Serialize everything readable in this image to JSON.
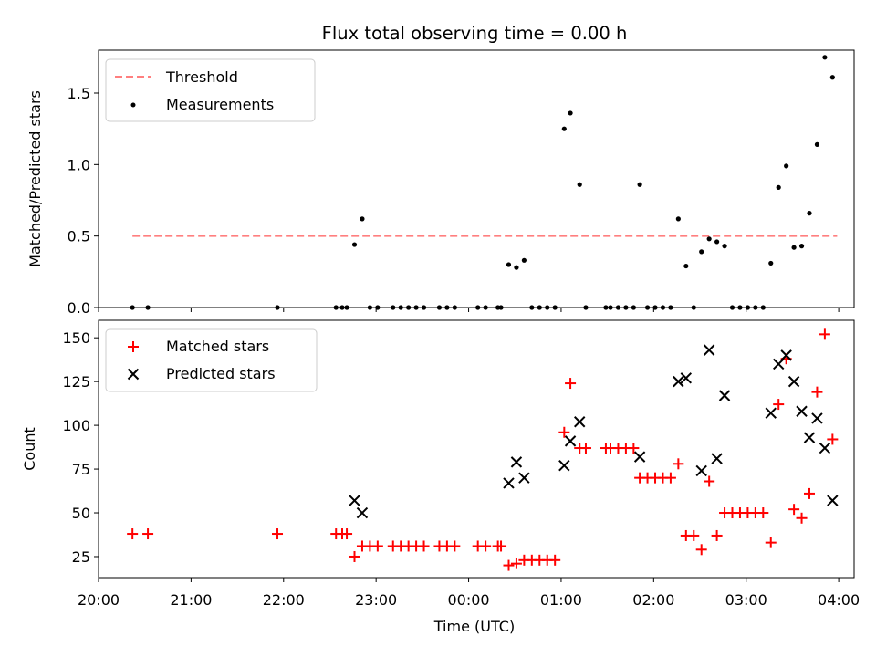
{
  "chart_data": [
    {
      "type": "line",
      "title": "Flux total observing time = 0.00 h",
      "xlabel": "",
      "ylabel": "Matched/Predicted stars",
      "xlim": [
        "20:00",
        "04:10"
      ],
      "ylim": [
        0,
        1.8
      ],
      "yticks": [
        0.0,
        0.5,
        1.0,
        1.5
      ],
      "yticklabels": [
        "0.0",
        "0.5",
        "1.0",
        "1.5"
      ],
      "legend_position": "top-left",
      "threshold": {
        "name": "Threshold",
        "value": 0.5,
        "x_range": [
          "20:22",
          "03:59"
        ],
        "color": "#ff7f7f"
      },
      "measurements": {
        "name": "Measurements",
        "color": "#000000",
        "points": [
          {
            "x": "20:22",
            "y": 0.0
          },
          {
            "x": "20:32",
            "y": 0.0
          },
          {
            "x": "21:56",
            "y": 0.0
          },
          {
            "x": "22:34",
            "y": 0.0
          },
          {
            "x": "22:38",
            "y": 0.0
          },
          {
            "x": "22:41",
            "y": 0.0
          },
          {
            "x": "22:46",
            "y": 0.44
          },
          {
            "x": "22:51",
            "y": 0.62
          },
          {
            "x": "22:56",
            "y": 0.0
          },
          {
            "x": "23:01",
            "y": 0.0
          },
          {
            "x": "23:11",
            "y": 0.0
          },
          {
            "x": "23:16",
            "y": 0.0
          },
          {
            "x": "23:21",
            "y": 0.0
          },
          {
            "x": "23:26",
            "y": 0.0
          },
          {
            "x": "23:31",
            "y": 0.0
          },
          {
            "x": "23:41",
            "y": 0.0
          },
          {
            "x": "23:46",
            "y": 0.0
          },
          {
            "x": "23:51",
            "y": 0.0
          },
          {
            "x": "00:06",
            "y": 0.0
          },
          {
            "x": "00:11",
            "y": 0.0
          },
          {
            "x": "00:19",
            "y": 0.0
          },
          {
            "x": "00:21",
            "y": 0.0
          },
          {
            "x": "00:26",
            "y": 0.3
          },
          {
            "x": "00:31",
            "y": 0.28
          },
          {
            "x": "00:36",
            "y": 0.33
          },
          {
            "x": "00:41",
            "y": 0.0
          },
          {
            "x": "00:46",
            "y": 0.0
          },
          {
            "x": "00:51",
            "y": 0.0
          },
          {
            "x": "00:56",
            "y": 0.0
          },
          {
            "x": "01:02",
            "y": 1.25
          },
          {
            "x": "01:06",
            "y": 1.36
          },
          {
            "x": "01:12",
            "y": 0.86
          },
          {
            "x": "01:16",
            "y": 0.0
          },
          {
            "x": "01:29",
            "y": 0.0
          },
          {
            "x": "01:32",
            "y": 0.0
          },
          {
            "x": "01:37",
            "y": 0.0
          },
          {
            "x": "01:42",
            "y": 0.0
          },
          {
            "x": "01:47",
            "y": 0.0
          },
          {
            "x": "01:51",
            "y": 0.86
          },
          {
            "x": "01:56",
            "y": 0.0
          },
          {
            "x": "02:01",
            "y": 0.0
          },
          {
            "x": "02:06",
            "y": 0.0
          },
          {
            "x": "02:11",
            "y": 0.0
          },
          {
            "x": "02:16",
            "y": 0.62
          },
          {
            "x": "02:21",
            "y": 0.29
          },
          {
            "x": "02:26",
            "y": 0.0
          },
          {
            "x": "02:31",
            "y": 0.39
          },
          {
            "x": "02:36",
            "y": 0.48
          },
          {
            "x": "02:41",
            "y": 0.46
          },
          {
            "x": "02:46",
            "y": 0.43
          },
          {
            "x": "02:51",
            "y": 0.0
          },
          {
            "x": "02:56",
            "y": 0.0
          },
          {
            "x": "03:01",
            "y": 0.0
          },
          {
            "x": "03:06",
            "y": 0.0
          },
          {
            "x": "03:11",
            "y": 0.0
          },
          {
            "x": "03:16",
            "y": 0.31
          },
          {
            "x": "03:21",
            "y": 0.84
          },
          {
            "x": "03:26",
            "y": 0.99
          },
          {
            "x": "03:31",
            "y": 0.42
          },
          {
            "x": "03:36",
            "y": 0.43
          },
          {
            "x": "03:41",
            "y": 0.66
          },
          {
            "x": "03:46",
            "y": 1.14
          },
          {
            "x": "03:51",
            "y": 1.75
          },
          {
            "x": "03:56",
            "y": 1.61
          }
        ]
      }
    },
    {
      "type": "scatter",
      "title": "",
      "xlabel": "Time (UTC)",
      "ylabel": "Count",
      "xlim": [
        "20:00",
        "04:10"
      ],
      "ylim": [
        13,
        160
      ],
      "xticks": [
        "20:00",
        "21:00",
        "22:00",
        "23:00",
        "00:00",
        "01:00",
        "02:00",
        "03:00",
        "04:00"
      ],
      "yticks": [
        25,
        50,
        75,
        100,
        125,
        150
      ],
      "legend_position": "top-left",
      "series": [
        {
          "name": "Matched stars",
          "marker": "plus",
          "color": "#ff0000",
          "points": [
            {
              "x": "20:22",
              "y": 38
            },
            {
              "x": "20:32",
              "y": 38
            },
            {
              "x": "21:56",
              "y": 38
            },
            {
              "x": "22:34",
              "y": 38
            },
            {
              "x": "22:38",
              "y": 38
            },
            {
              "x": "22:41",
              "y": 38
            },
            {
              "x": "22:46",
              "y": 25
            },
            {
              "x": "22:51",
              "y": 31
            },
            {
              "x": "22:56",
              "y": 31
            },
            {
              "x": "23:01",
              "y": 31
            },
            {
              "x": "23:11",
              "y": 31
            },
            {
              "x": "23:16",
              "y": 31
            },
            {
              "x": "23:21",
              "y": 31
            },
            {
              "x": "23:26",
              "y": 31
            },
            {
              "x": "23:31",
              "y": 31
            },
            {
              "x": "23:41",
              "y": 31
            },
            {
              "x": "23:46",
              "y": 31
            },
            {
              "x": "23:51",
              "y": 31
            },
            {
              "x": "00:06",
              "y": 31
            },
            {
              "x": "00:11",
              "y": 31
            },
            {
              "x": "00:19",
              "y": 31
            },
            {
              "x": "00:21",
              "y": 31
            },
            {
              "x": "00:26",
              "y": 20
            },
            {
              "x": "00:31",
              "y": 21
            },
            {
              "x": "00:36",
              "y": 23
            },
            {
              "x": "00:41",
              "y": 23
            },
            {
              "x": "00:46",
              "y": 23
            },
            {
              "x": "00:51",
              "y": 23
            },
            {
              "x": "00:56",
              "y": 23
            },
            {
              "x": "01:02",
              "y": 96
            },
            {
              "x": "01:06",
              "y": 124
            },
            {
              "x": "01:12",
              "y": 87
            },
            {
              "x": "01:16",
              "y": 87
            },
            {
              "x": "01:29",
              "y": 87
            },
            {
              "x": "01:32",
              "y": 87
            },
            {
              "x": "01:37",
              "y": 87
            },
            {
              "x": "01:42",
              "y": 87
            },
            {
              "x": "01:47",
              "y": 87
            },
            {
              "x": "01:51",
              "y": 70
            },
            {
              "x": "01:56",
              "y": 70
            },
            {
              "x": "02:01",
              "y": 70
            },
            {
              "x": "02:06",
              "y": 70
            },
            {
              "x": "02:11",
              "y": 70
            },
            {
              "x": "02:16",
              "y": 78
            },
            {
              "x": "02:21",
              "y": 37
            },
            {
              "x": "02:26",
              "y": 37
            },
            {
              "x": "02:31",
              "y": 29
            },
            {
              "x": "02:36",
              "y": 68
            },
            {
              "x": "02:41",
              "y": 37
            },
            {
              "x": "02:46",
              "y": 50
            },
            {
              "x": "02:51",
              "y": 50
            },
            {
              "x": "02:56",
              "y": 50
            },
            {
              "x": "03:01",
              "y": 50
            },
            {
              "x": "03:06",
              "y": 50
            },
            {
              "x": "03:11",
              "y": 50
            },
            {
              "x": "03:16",
              "y": 33
            },
            {
              "x": "03:21",
              "y": 112
            },
            {
              "x": "03:26",
              "y": 138
            },
            {
              "x": "03:31",
              "y": 52
            },
            {
              "x": "03:36",
              "y": 47
            },
            {
              "x": "03:41",
              "y": 61
            },
            {
              "x": "03:46",
              "y": 119
            },
            {
              "x": "03:51",
              "y": 152
            },
            {
              "x": "03:56",
              "y": 92
            }
          ]
        },
        {
          "name": "Predicted stars",
          "marker": "x",
          "color": "#000000",
          "points": [
            {
              "x": "22:46",
              "y": 57
            },
            {
              "x": "22:51",
              "y": 50
            },
            {
              "x": "00:26",
              "y": 67
            },
            {
              "x": "00:31",
              "y": 79
            },
            {
              "x": "00:36",
              "y": 70
            },
            {
              "x": "01:02",
              "y": 77
            },
            {
              "x": "01:06",
              "y": 91
            },
            {
              "x": "01:12",
              "y": 102
            },
            {
              "x": "01:51",
              "y": 82
            },
            {
              "x": "02:16",
              "y": 125
            },
            {
              "x": "02:21",
              "y": 127
            },
            {
              "x": "02:31",
              "y": 74
            },
            {
              "x": "02:36",
              "y": 143
            },
            {
              "x": "02:41",
              "y": 81
            },
            {
              "x": "02:46",
              "y": 117
            },
            {
              "x": "03:16",
              "y": 107
            },
            {
              "x": "03:21",
              "y": 135
            },
            {
              "x": "03:26",
              "y": 140
            },
            {
              "x": "03:31",
              "y": 125
            },
            {
              "x": "03:36",
              "y": 108
            },
            {
              "x": "03:41",
              "y": 93
            },
            {
              "x": "03:46",
              "y": 104
            },
            {
              "x": "03:51",
              "y": 87
            },
            {
              "x": "03:56",
              "y": 57
            }
          ]
        }
      ]
    }
  ]
}
